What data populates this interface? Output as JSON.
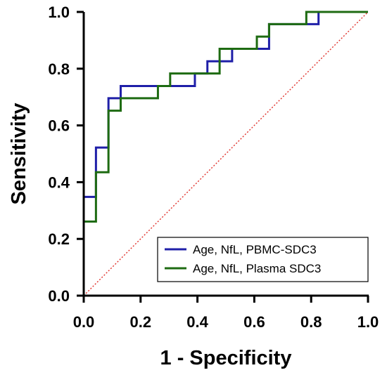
{
  "chart_data": {
    "type": "line",
    "title": "",
    "xlabel": "1 - Specificity",
    "ylabel": "Sensitivity",
    "xlim": [
      0,
      1
    ],
    "ylim": [
      0,
      1
    ],
    "x_ticks": [
      "0.0",
      "0.2",
      "0.4",
      "0.6",
      "0.8",
      "1.0"
    ],
    "y_ticks": [
      "0.0",
      "0.2",
      "0.4",
      "0.6",
      "0.8",
      "1.0"
    ],
    "grid": false,
    "legend_position": "bottom-right",
    "series": [
      {
        "name": "Age, NfL, PBMC-SDC3",
        "color": "#1f1fa8",
        "style": "step",
        "x": [
          0,
          0,
          0.043,
          0.043,
          0.087,
          0.087,
          0.13,
          0.13,
          0.391,
          0.391,
          0.435,
          0.435,
          0.522,
          0.522,
          0.609,
          0.609,
          0.652,
          0.652,
          0.783,
          0.783,
          0.826,
          0.826,
          1
        ],
        "y": [
          0,
          0.348,
          0.348,
          0.522,
          0.522,
          0.696,
          0.696,
          0.739,
          0.739,
          0.783,
          0.783,
          0.826,
          0.826,
          0.87,
          0.87,
          0.87,
          0.87,
          0.957,
          0.957,
          0.957,
          0.957,
          1,
          1
        ]
      },
      {
        "name": "Age, NfL, Plasma SDC3",
        "color": "#1e6b12",
        "style": "step",
        "x": [
          0,
          0,
          0.043,
          0.043,
          0.087,
          0.087,
          0.13,
          0.13,
          0.261,
          0.261,
          0.304,
          0.304,
          0.478,
          0.478,
          0.609,
          0.609,
          0.652,
          0.652,
          0.783,
          0.783,
          1
        ],
        "y": [
          0,
          0.261,
          0.261,
          0.435,
          0.435,
          0.652,
          0.652,
          0.696,
          0.696,
          0.739,
          0.739,
          0.783,
          0.783,
          0.87,
          0.87,
          0.913,
          0.913,
          0.957,
          0.957,
          1,
          1
        ]
      }
    ],
    "reference_line": {
      "x": [
        0,
        1
      ],
      "y": [
        0,
        1
      ],
      "color": "#e0302a",
      "style": "dotted"
    }
  }
}
